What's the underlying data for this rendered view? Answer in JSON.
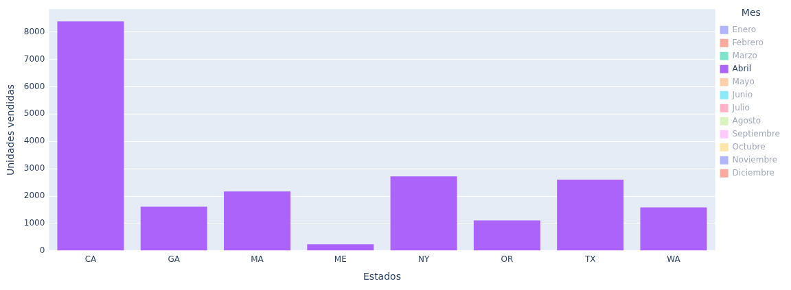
{
  "chart_data": {
    "type": "bar",
    "xlabel": "Estados",
    "ylabel": "Unidades vendidas",
    "legend_title": "Mes",
    "categories": [
      "CA",
      "GA",
      "MA",
      "ME",
      "NY",
      "OR",
      "TX",
      "WA"
    ],
    "series": [
      {
        "name": "Enero",
        "color": "#636efa",
        "values": [
          null,
          null,
          null,
          null,
          null,
          null,
          null,
          null
        ]
      },
      {
        "name": "Febrero",
        "color": "#ef553b",
        "values": [
          null,
          null,
          null,
          null,
          null,
          null,
          null,
          null
        ]
      },
      {
        "name": "Marzo",
        "color": "#00cc96",
        "values": [
          null,
          null,
          null,
          null,
          null,
          null,
          null,
          null
        ]
      },
      {
        "name": "Abril",
        "color": "#ab63fa",
        "values": [
          8390,
          1610,
          2170,
          240,
          2720,
          1110,
          2600,
          1590
        ]
      },
      {
        "name": "Mayo",
        "color": "#ffa15a",
        "values": [
          null,
          null,
          null,
          null,
          null,
          null,
          null,
          null
        ]
      },
      {
        "name": "Junio",
        "color": "#19d3f3",
        "values": [
          null,
          null,
          null,
          null,
          null,
          null,
          null,
          null
        ]
      },
      {
        "name": "Julio",
        "color": "#ff6692",
        "values": [
          null,
          null,
          null,
          null,
          null,
          null,
          null,
          null
        ]
      },
      {
        "name": "Agosto",
        "color": "#b6e880",
        "values": [
          null,
          null,
          null,
          null,
          null,
          null,
          null,
          null
        ]
      },
      {
        "name": "Septiembre",
        "color": "#ff97ff",
        "values": [
          null,
          null,
          null,
          null,
          null,
          null,
          null,
          null
        ]
      },
      {
        "name": "Octubre",
        "color": "#fecb52",
        "values": [
          null,
          null,
          null,
          null,
          null,
          null,
          null,
          null
        ]
      },
      {
        "name": "Noviembre",
        "color": "#636efa",
        "values": [
          null,
          null,
          null,
          null,
          null,
          null,
          null,
          null
        ]
      },
      {
        "name": "Diciembre",
        "color": "#ef553b",
        "values": [
          null,
          null,
          null,
          null,
          null,
          null,
          null,
          null
        ]
      }
    ],
    "stacked": true,
    "ylim": [
      0,
      8840
    ],
    "yticks": [
      0,
      1000,
      2000,
      3000,
      4000,
      5000,
      6000,
      7000,
      8000
    ],
    "grid": "y",
    "legend": "top right"
  }
}
